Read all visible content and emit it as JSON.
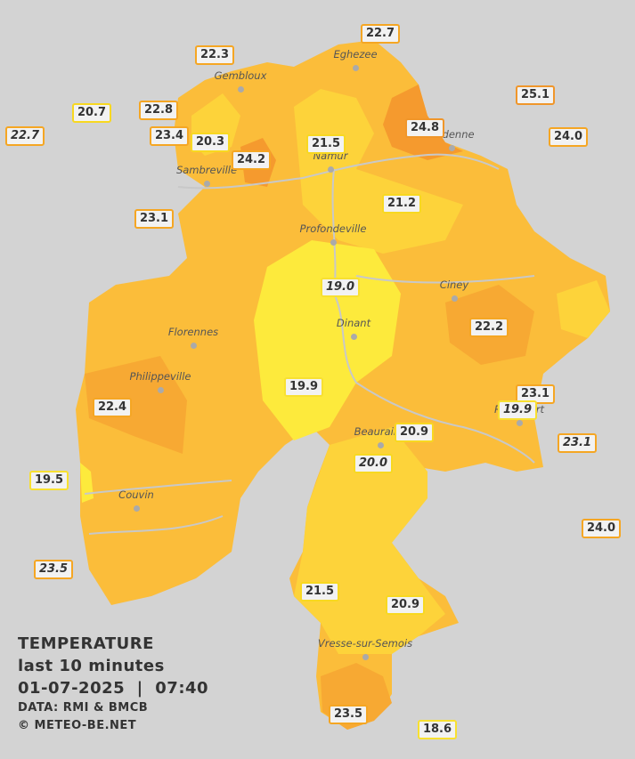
{
  "legend": {
    "title": "TEMPERATURE",
    "subtitle": "last 10 minutes",
    "datetime": "01-07-2025  |  07:40",
    "source": "DATA: RMI & BMCB",
    "credit": "© METEO-BE.NET"
  },
  "cities": [
    "Eghezee",
    "Gembloux",
    "Andenne",
    "Namur",
    "Sambreville",
    "Profondeville",
    "Ciney",
    "Dinant",
    "Florennes",
    "Philippeville",
    "Beauraing",
    "Rochefort",
    "Couvin",
    "Vresse-sur-Semois"
  ],
  "stations": [
    {
      "value": "22.7",
      "color": "#f5a623"
    },
    {
      "value": "22.3",
      "color": "#f5a623"
    },
    {
      "value": "20.7",
      "color": "#f8d820"
    },
    {
      "value": "22.7",
      "color": "#f5a623",
      "italic": true
    },
    {
      "value": "22.8",
      "color": "#f5a623"
    },
    {
      "value": "23.4",
      "color": "#f5a623"
    },
    {
      "value": "20.3",
      "color": "#f8d820"
    },
    {
      "value": "24.2",
      "color": "#f5a623"
    },
    {
      "value": "21.5",
      "color": "#f8d820"
    },
    {
      "value": "24.8",
      "color": "#f0962a"
    },
    {
      "value": "25.1",
      "color": "#f0962a"
    },
    {
      "value": "24.0",
      "color": "#f5a623"
    },
    {
      "value": "21.2",
      "color": "#f8d820"
    },
    {
      "value": "23.1",
      "color": "#f5a623"
    },
    {
      "value": "19.0",
      "color": "#f8e030",
      "italic": true
    },
    {
      "value": "22.2",
      "color": "#f5a623"
    },
    {
      "value": "23.1",
      "color": "#f5a623"
    },
    {
      "value": "19.9",
      "color": "#f8e030",
      "italic": true
    },
    {
      "value": "19.9",
      "color": "#f8e030"
    },
    {
      "value": "20.9",
      "color": "#f8d820"
    },
    {
      "value": "23.1",
      "color": "#f5a623",
      "italic": true
    },
    {
      "value": "20.0",
      "color": "#f8d820",
      "italic": true
    },
    {
      "value": "22.4",
      "color": "#f5a623"
    },
    {
      "value": "19.5",
      "color": "#f8e030"
    },
    {
      "value": "24.0",
      "color": "#f5a623"
    },
    {
      "value": "23.5",
      "color": "#f5a623",
      "italic": true
    },
    {
      "value": "21.5",
      "color": "#f8d820"
    },
    {
      "value": "20.9",
      "color": "#f8d820"
    },
    {
      "value": "23.5",
      "color": "#f5a623"
    },
    {
      "value": "18.6",
      "color": "#f8e030"
    }
  ]
}
